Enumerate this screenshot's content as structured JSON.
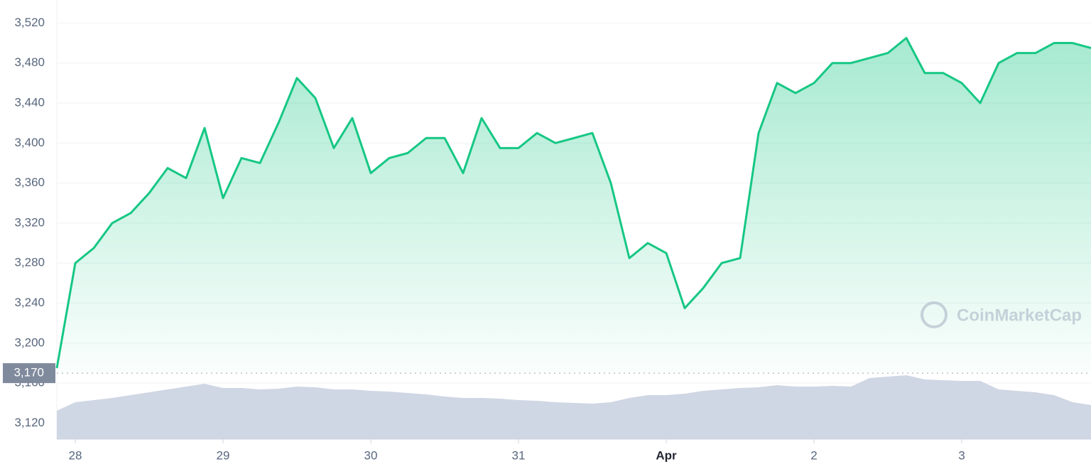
{
  "chart_data": {
    "type": "line",
    "categories": [
      null,
      "28",
      null,
      null,
      null,
      null,
      null,
      null,
      null,
      "29",
      null,
      null,
      null,
      null,
      null,
      null,
      null,
      "30",
      null,
      null,
      null,
      null,
      null,
      null,
      null,
      "31",
      null,
      null,
      null,
      null,
      null,
      null,
      null,
      "Apr",
      null,
      null,
      null,
      null,
      null,
      null,
      null,
      "2",
      null,
      null,
      null,
      null,
      null,
      null,
      null,
      "3",
      null,
      null,
      null,
      null,
      null,
      null,
      null
    ],
    "values": [
      3175,
      3280,
      3295,
      3320,
      3330,
      3350,
      3375,
      3365,
      3415,
      3345,
      3385,
      3380,
      3420,
      3465,
      3445,
      3395,
      3425,
      3370,
      3385,
      3390,
      3405,
      3405,
      3370,
      3425,
      3395,
      3395,
      3410,
      3400,
      3405,
      3410,
      3360,
      3285,
      3300,
      3290,
      3235,
      3255,
      3280,
      3285,
      3410,
      3460,
      3450,
      3460,
      3480,
      3480,
      3485,
      3490,
      3505,
      3470,
      3470,
      3460,
      3440,
      3480,
      3490,
      3490,
      3500,
      3500,
      3495
    ],
    "color": "#16c784",
    "volume": {
      "color": "#cfd6e4",
      "values": [
        40,
        52,
        55,
        58,
        62,
        66,
        70,
        74,
        78,
        72,
        72,
        70,
        71,
        74,
        73,
        70,
        70,
        68,
        67,
        65,
        63,
        60,
        58,
        58,
        57,
        55,
        54,
        52,
        51,
        50,
        52,
        58,
        62,
        62,
        64,
        68,
        70,
        72,
        73,
        76,
        74,
        74,
        75,
        74,
        86,
        88,
        90,
        84,
        83,
        82,
        82,
        70,
        68,
        66,
        62,
        52,
        48
      ]
    },
    "y2lim": [
      0,
      100
    ],
    "ylim": [
      3104,
      3543
    ],
    "yticks": [
      {
        "value": 3120,
        "label": "3,120"
      },
      {
        "value": 3160,
        "label": "3,160"
      },
      {
        "value": 3200,
        "label": "3,200"
      },
      {
        "value": 3240,
        "label": "3,240"
      },
      {
        "value": 3280,
        "label": "3,280"
      },
      {
        "value": 3320,
        "label": "3,320"
      },
      {
        "value": 3360,
        "label": "3,360"
      },
      {
        "value": 3400,
        "label": "3,400"
      },
      {
        "value": 3440,
        "label": "3,440"
      },
      {
        "value": 3480,
        "label": "3,480"
      },
      {
        "value": 3520,
        "label": "3,520"
      }
    ],
    "reference": {
      "value": 3170,
      "label": "3,170"
    },
    "grid": true,
    "watermark": "CoinMarketCap"
  }
}
